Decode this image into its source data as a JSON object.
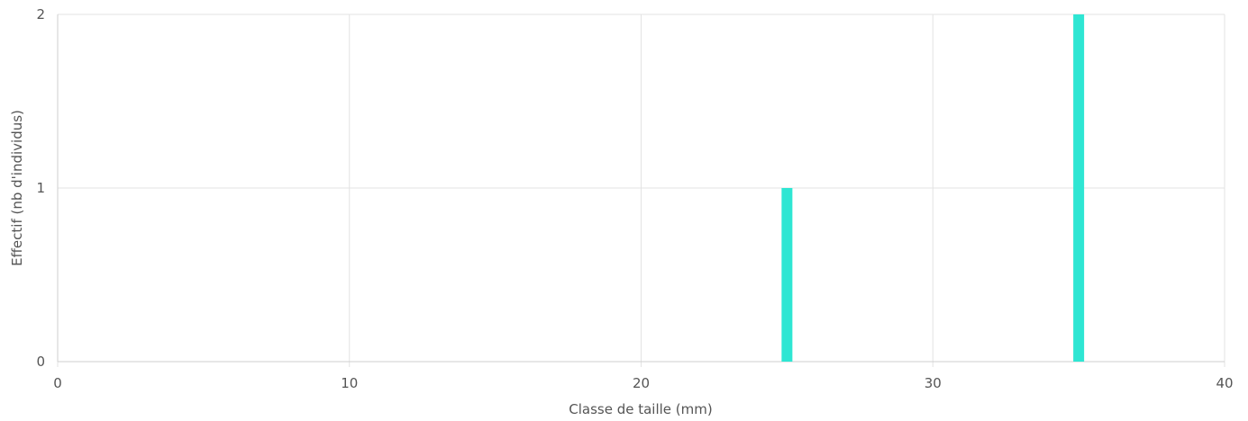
{
  "chart_data": {
    "type": "bar",
    "xlabel": "Classe de taille (mm)",
    "ylabel": "Effectif (nb d'individus)",
    "xlim": [
      0,
      40
    ],
    "ylim": [
      0,
      2
    ],
    "x_ticks": [
      0,
      10,
      20,
      30,
      40
    ],
    "y_ticks": [
      0,
      1,
      2
    ],
    "grid": true,
    "bar_color": "#2ee6d3",
    "x": [
      25,
      35
    ],
    "values": [
      1,
      2
    ]
  }
}
